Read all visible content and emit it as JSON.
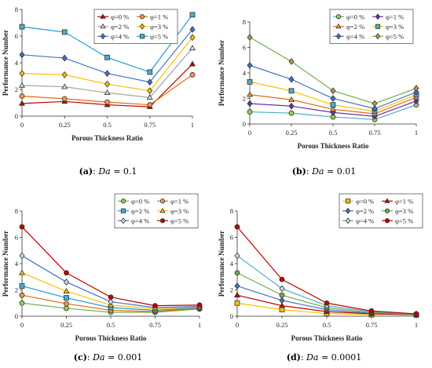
{
  "panels": [
    {
      "caption": {
        "label": "(a)",
        "param": "Da",
        "value": "0.1"
      },
      "legend_box": {
        "cols": 2
      },
      "chart_data": {
        "type": "line",
        "xlabel": "Porous Thickness Ratio",
        "ylabel": "Performance Number",
        "x": [
          0,
          0.25,
          0.5,
          0.75,
          1
        ],
        "xticks": [
          "0",
          "0.25",
          "0.5",
          "0.75",
          "1"
        ],
        "ylim": [
          0,
          8
        ],
        "yticks": [
          0,
          2,
          4,
          6,
          8
        ],
        "grid": false,
        "legend": "top-left",
        "series": [
          {
            "name": "φ=0 %",
            "color": "#c00000",
            "marker": "triangle",
            "fill": "#c00000",
            "values": [
              0.95,
              1.1,
              0.85,
              0.7,
              3.9
            ]
          },
          {
            "name": "φ=1 %",
            "color": "#e36c09",
            "marker": "circle",
            "fill": "#f79646",
            "values": [
              1.5,
              1.3,
              1.05,
              0.85,
              3.1
            ]
          },
          {
            "name": "φ=2 %",
            "color": "#a5a5a5",
            "marker": "triangle",
            "fill": "#d9d9d9",
            "values": [
              2.3,
              2.2,
              1.75,
              1.4,
              5.1
            ]
          },
          {
            "name": "φ=3 %",
            "color": "#ffc000",
            "marker": "diamond",
            "fill": "#ffc000",
            "values": [
              3.2,
              3.1,
              2.4,
              1.9,
              5.9
            ]
          },
          {
            "name": "φ=4 %",
            "color": "#4472c4",
            "marker": "diamond",
            "fill": "#4472c4",
            "values": [
              4.6,
              4.35,
              3.2,
              2.55,
              6.5
            ]
          },
          {
            "name": "φ=5 %",
            "color": "#1f9bd6",
            "marker": "square",
            "fill": "#4bacc6",
            "values": [
              6.7,
              6.3,
              4.4,
              3.3,
              7.6
            ]
          }
        ]
      }
    },
    {
      "caption": {
        "label": "(b)",
        "param": "Da",
        "value": "0.01"
      },
      "legend_box": {
        "cols": 2
      },
      "chart_data": {
        "type": "line",
        "xlabel": "Porous Thickness Ratio",
        "ylabel": "Performance Number",
        "x": [
          0,
          0.25,
          0.5,
          0.75,
          1
        ],
        "xticks": [
          "0",
          "0.25",
          "0.5",
          "0.75",
          "1"
        ],
        "ylim": [
          0,
          8
        ],
        "yticks": [
          0,
          2,
          4,
          6,
          8
        ],
        "grid": false,
        "legend": "top-right",
        "series": [
          {
            "name": "φ=0 %",
            "color": "#4bacc6",
            "marker": "circle",
            "fill": "#92d050",
            "values": [
              0.95,
              0.85,
              0.55,
              0.35,
              1.5
            ]
          },
          {
            "name": "φ=1 %",
            "color": "#7030a0",
            "marker": "diamond",
            "fill": "#7030a0",
            "values": [
              1.6,
              1.4,
              0.9,
              0.6,
              1.8
            ]
          },
          {
            "name": "φ=2 %",
            "color": "#e36c09",
            "marker": "triangle",
            "fill": "#f79646",
            "values": [
              2.3,
              1.9,
              1.15,
              0.8,
              2.1
            ]
          },
          {
            "name": "φ=3 %",
            "color": "#ffc000",
            "marker": "square",
            "fill": "#4bacc6",
            "values": [
              3.3,
              2.6,
              1.5,
              1.0,
              2.3
            ]
          },
          {
            "name": "φ=4 %",
            "color": "#4472c4",
            "marker": "diamond",
            "fill": "#4472c4",
            "values": [
              4.6,
              3.5,
              2.0,
              1.2,
              2.5
            ]
          },
          {
            "name": "φ=5 %",
            "color": "#70ad47",
            "marker": "diamond",
            "fill": "#c09050",
            "values": [
              6.8,
              4.9,
              2.6,
              1.6,
              2.8
            ]
          }
        ]
      }
    },
    {
      "caption": {
        "label": "(c)",
        "param": "Da",
        "value": "0.001"
      },
      "legend_box": {
        "cols": 2
      },
      "chart_data": {
        "type": "line",
        "xlabel": "Porous Thickness Ratio",
        "ylabel": "Performance Number",
        "x": [
          0,
          0.25,
          0.5,
          0.75,
          1
        ],
        "xticks": [
          "0",
          "0.25",
          "0.5",
          "0.75",
          "1"
        ],
        "ylim": [
          0,
          8
        ],
        "yticks": [
          0,
          2,
          4,
          6,
          8
        ],
        "grid": false,
        "legend": "top-right",
        "series": [
          {
            "name": "φ=0 %",
            "color": "#70ad47",
            "marker": "circle",
            "fill": "#92d050",
            "values": [
              1.0,
              0.6,
              0.3,
              0.3,
              0.55
            ]
          },
          {
            "name": "φ=1 %",
            "color": "#e36c09",
            "marker": "circle",
            "fill": "#f79646",
            "values": [
              1.6,
              0.95,
              0.45,
              0.35,
              0.6
            ]
          },
          {
            "name": "φ=2 %",
            "color": "#1f9bd6",
            "marker": "square",
            "fill": "#4bacc6",
            "values": [
              2.3,
              1.4,
              0.65,
              0.45,
              0.65
            ]
          },
          {
            "name": "φ=3 %",
            "color": "#ffc000",
            "marker": "triangle",
            "fill": "#ffc000",
            "values": [
              3.3,
              1.9,
              0.85,
              0.55,
              0.7
            ]
          },
          {
            "name": "φ=4 %",
            "color": "#4472c4",
            "marker": "diamond",
            "fill": "#d9d9d9",
            "values": [
              4.6,
              2.6,
              1.1,
              0.65,
              0.75
            ]
          },
          {
            "name": "φ=5 %",
            "color": "#c00000",
            "marker": "circle",
            "fill": "#c00000",
            "values": [
              6.8,
              3.3,
              1.45,
              0.8,
              0.85
            ]
          }
        ]
      }
    },
    {
      "caption": {
        "label": "(d)",
        "param": "Da",
        "value": "0.0001"
      },
      "legend_box": {
        "cols": 2
      },
      "chart_data": {
        "type": "line",
        "xlabel": "Porous Thickness Ratio",
        "ylabel": "Performance Number",
        "x": [
          0,
          0.25,
          0.5,
          0.75,
          1
        ],
        "xticks": [
          "0",
          "0.25",
          "0.5",
          "0.75",
          "1"
        ],
        "ylim": [
          0,
          8
        ],
        "yticks": [
          0,
          2,
          4,
          6,
          8
        ],
        "grid": false,
        "legend": "top-right",
        "series": [
          {
            "name": "φ=0 %",
            "color": "#ffc000",
            "marker": "square",
            "fill": "#ffc000",
            "values": [
              1.0,
              0.5,
              0.2,
              0.12,
              0.1
            ]
          },
          {
            "name": "φ=1 %",
            "color": "#c00000",
            "marker": "triangle",
            "fill": "#c00000",
            "values": [
              1.6,
              0.8,
              0.35,
              0.18,
              0.12
            ]
          },
          {
            "name": "φ=2 %",
            "color": "#4472c4",
            "marker": "diamond",
            "fill": "#4472c4",
            "values": [
              2.3,
              1.2,
              0.5,
              0.22,
              0.14
            ]
          },
          {
            "name": "φ=3 %",
            "color": "#70ad47",
            "marker": "circle",
            "fill": "#70ad47",
            "values": [
              3.3,
              1.6,
              0.65,
              0.28,
              0.15
            ]
          },
          {
            "name": "φ=4 %",
            "color": "#4bacc6",
            "marker": "diamond",
            "fill": "#d9d9d9",
            "values": [
              4.6,
              2.1,
              0.8,
              0.35,
              0.16
            ]
          },
          {
            "name": "φ=5 %",
            "color": "#c00000",
            "marker": "circle",
            "fill": "#c00000",
            "values": [
              6.8,
              2.8,
              1.0,
              0.4,
              0.18
            ]
          }
        ]
      }
    }
  ]
}
